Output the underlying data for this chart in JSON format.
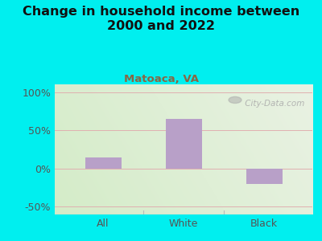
{
  "title": "Change in household income between\n2000 and 2022",
  "subtitle": "Matoaca, VA",
  "categories": [
    "All",
    "White",
    "Black"
  ],
  "values": [
    15,
    65,
    -20
  ],
  "bar_color": "#b8a0c8",
  "background_color": "#00EFEF",
  "plot_bg_left": "#d4ecc8",
  "plot_bg_right": "#f5f5f2",
  "title_color": "#111111",
  "subtitle_color": "#886644",
  "tick_color": "#555555",
  "grid_color": "#e0b0b0",
  "bottom_line_color": "#bbbbbb",
  "separator_color": "#bbbbbb",
  "ylim": [
    -60,
    110
  ],
  "yticks": [
    -50,
    0,
    50,
    100
  ],
  "ytick_labels": [
    "-50%",
    "0%",
    "50%",
    "100%"
  ],
  "bar_width": 0.45,
  "watermark": " City-Data.com",
  "watermark_color": "#aaaaaa",
  "title_fontsize": 11.5,
  "subtitle_fontsize": 9.5,
  "tick_fontsize": 9
}
